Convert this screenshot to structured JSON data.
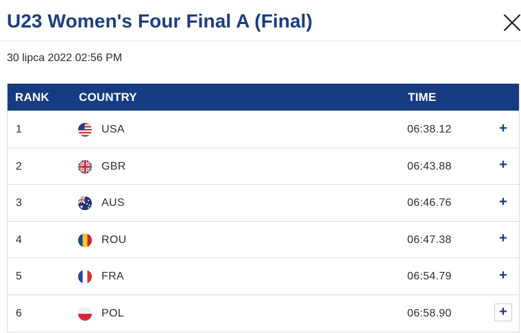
{
  "modal": {
    "title": "U23 Women's Four Final A (Final)",
    "timestamp": "30 lipca 2022 02:56 PM",
    "close_icon": "close-x-icon"
  },
  "table": {
    "headers": {
      "rank": "RANK",
      "country": "COUNTRY",
      "time": "TIME"
    },
    "header_bg": "#173b80",
    "rows": [
      {
        "rank": "1",
        "code": "USA",
        "flag": "usa-flag-icon",
        "time": "06:38.12",
        "expand": "+"
      },
      {
        "rank": "2",
        "code": "GBR",
        "flag": "gbr-flag-icon",
        "time": "06:43.88",
        "expand": "+"
      },
      {
        "rank": "3",
        "code": "AUS",
        "flag": "aus-flag-icon",
        "time": "06:46.76",
        "expand": "+"
      },
      {
        "rank": "4",
        "code": "ROU",
        "flag": "rou-flag-icon",
        "time": "06:47.38",
        "expand": "+"
      },
      {
        "rank": "5",
        "code": "FRA",
        "flag": "fra-flag-icon",
        "time": "06:54.79",
        "expand": "+"
      },
      {
        "rank": "6",
        "code": "POL",
        "flag": "pol-flag-icon",
        "time": "06:58.90",
        "expand": "+"
      }
    ]
  }
}
